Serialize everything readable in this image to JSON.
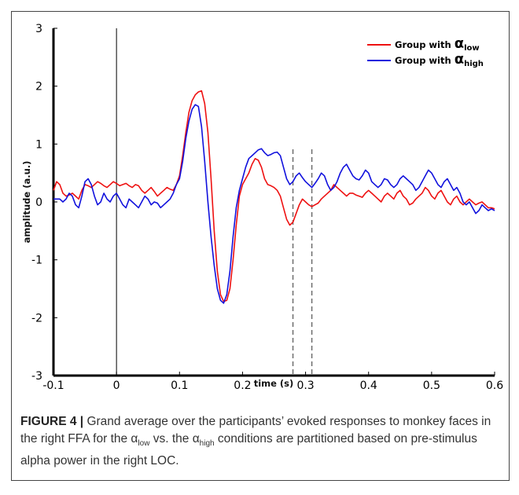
{
  "chart_data": {
    "type": "line",
    "xlabel": "time (s)",
    "ylabel": "amplitude (a.u.)",
    "xlim": [
      -0.1,
      0.6
    ],
    "ylim": [
      -3,
      3
    ],
    "xticks": [
      "-0.1",
      "0",
      "0.1",
      "0.2",
      "0.3",
      "0.4",
      "0.5",
      "0.6"
    ],
    "yticks": [
      "-3",
      "-2",
      "-1",
      "0",
      "1",
      "2",
      "3"
    ],
    "vertical_lines": [
      {
        "x": 0,
        "style": "solid"
      },
      {
        "x": 0.28,
        "style": "dashed"
      },
      {
        "x": 0.31,
        "style": "dashed"
      }
    ],
    "legend_position": "top-right",
    "legend_prefix": "Group with",
    "legend_symbol": "α",
    "series": [
      {
        "name": "Group with αlow",
        "subscript": "low",
        "color": "#ee1111",
        "x": [
          -0.1,
          -0.095,
          -0.09,
          -0.085,
          -0.08,
          -0.075,
          -0.07,
          -0.065,
          -0.06,
          -0.055,
          -0.05,
          -0.045,
          -0.04,
          -0.035,
          -0.03,
          -0.025,
          -0.02,
          -0.015,
          -0.01,
          -0.005,
          0,
          0.005,
          0.01,
          0.015,
          0.02,
          0.025,
          0.03,
          0.035,
          0.04,
          0.045,
          0.05,
          0.055,
          0.06,
          0.065,
          0.07,
          0.075,
          0.08,
          0.085,
          0.09,
          0.095,
          0.1,
          0.105,
          0.11,
          0.115,
          0.12,
          0.125,
          0.13,
          0.135,
          0.14,
          0.145,
          0.15,
          0.155,
          0.16,
          0.165,
          0.17,
          0.175,
          0.18,
          0.185,
          0.19,
          0.195,
          0.2,
          0.205,
          0.21,
          0.215,
          0.22,
          0.225,
          0.23,
          0.235,
          0.24,
          0.245,
          0.25,
          0.255,
          0.26,
          0.265,
          0.27,
          0.275,
          0.28,
          0.285,
          0.29,
          0.295,
          0.3,
          0.305,
          0.31,
          0.315,
          0.32,
          0.325,
          0.33,
          0.335,
          0.34,
          0.345,
          0.35,
          0.355,
          0.36,
          0.365,
          0.37,
          0.375,
          0.38,
          0.385,
          0.39,
          0.395,
          0.4,
          0.405,
          0.41,
          0.415,
          0.42,
          0.425,
          0.43,
          0.435,
          0.44,
          0.445,
          0.45,
          0.455,
          0.46,
          0.465,
          0.47,
          0.475,
          0.48,
          0.485,
          0.49,
          0.495,
          0.5,
          0.505,
          0.51,
          0.515,
          0.52,
          0.525,
          0.53,
          0.535,
          0.54,
          0.545,
          0.55,
          0.555,
          0.56,
          0.565,
          0.57,
          0.575,
          0.58,
          0.585,
          0.59,
          0.595,
          0.6
        ],
        "y": [
          0.2,
          0.35,
          0.3,
          0.15,
          0.1,
          0.12,
          0.15,
          0.1,
          0.05,
          0.2,
          0.3,
          0.28,
          0.25,
          0.3,
          0.35,
          0.32,
          0.28,
          0.25,
          0.3,
          0.35,
          0.32,
          0.28,
          0.3,
          0.32,
          0.28,
          0.25,
          0.3,
          0.28,
          0.2,
          0.15,
          0.2,
          0.25,
          0.18,
          0.1,
          0.15,
          0.2,
          0.25,
          0.22,
          0.2,
          0.3,
          0.45,
          0.8,
          1.2,
          1.55,
          1.75,
          1.85,
          1.9,
          1.92,
          1.7,
          1.2,
          0.4,
          -0.5,
          -1.2,
          -1.6,
          -1.72,
          -1.7,
          -1.5,
          -1.0,
          -0.4,
          0.1,
          0.3,
          0.4,
          0.5,
          0.65,
          0.75,
          0.72,
          0.6,
          0.4,
          0.3,
          0.28,
          0.25,
          0.2,
          0.1,
          -0.1,
          -0.3,
          -0.4,
          -0.35,
          -0.2,
          -0.05,
          0.05,
          0.0,
          -0.05,
          -0.08,
          -0.05,
          -0.02,
          0.05,
          0.1,
          0.15,
          0.2,
          0.3,
          0.25,
          0.2,
          0.15,
          0.1,
          0.15,
          0.15,
          0.12,
          0.1,
          0.08,
          0.15,
          0.2,
          0.15,
          0.1,
          0.05,
          0.0,
          0.1,
          0.15,
          0.1,
          0.05,
          0.15,
          0.2,
          0.1,
          0.05,
          -0.05,
          -0.02,
          0.05,
          0.1,
          0.15,
          0.25,
          0.2,
          0.1,
          0.05,
          0.15,
          0.2,
          0.1,
          0.0,
          -0.05,
          0.05,
          0.1,
          0.0,
          -0.05,
          0.0,
          0.05,
          0.0,
          -0.05,
          -0.02,
          0.0,
          -0.05,
          -0.1,
          -0.1,
          -0.12
        ]
      },
      {
        "name": "Group with αhigh",
        "subscript": "high",
        "color": "#1111dd",
        "x": [
          -0.1,
          -0.095,
          -0.09,
          -0.085,
          -0.08,
          -0.075,
          -0.07,
          -0.065,
          -0.06,
          -0.055,
          -0.05,
          -0.045,
          -0.04,
          -0.035,
          -0.03,
          -0.025,
          -0.02,
          -0.015,
          -0.01,
          -0.005,
          0,
          0.005,
          0.01,
          0.015,
          0.02,
          0.025,
          0.03,
          0.035,
          0.04,
          0.045,
          0.05,
          0.055,
          0.06,
          0.065,
          0.07,
          0.075,
          0.08,
          0.085,
          0.09,
          0.095,
          0.1,
          0.105,
          0.11,
          0.115,
          0.12,
          0.125,
          0.13,
          0.135,
          0.14,
          0.145,
          0.15,
          0.155,
          0.16,
          0.165,
          0.17,
          0.175,
          0.18,
          0.185,
          0.19,
          0.195,
          0.2,
          0.205,
          0.21,
          0.215,
          0.22,
          0.225,
          0.23,
          0.235,
          0.24,
          0.245,
          0.25,
          0.255,
          0.26,
          0.265,
          0.27,
          0.275,
          0.28,
          0.285,
          0.29,
          0.295,
          0.3,
          0.305,
          0.31,
          0.315,
          0.32,
          0.325,
          0.33,
          0.335,
          0.34,
          0.345,
          0.35,
          0.355,
          0.36,
          0.365,
          0.37,
          0.375,
          0.38,
          0.385,
          0.39,
          0.395,
          0.4,
          0.405,
          0.41,
          0.415,
          0.42,
          0.425,
          0.43,
          0.435,
          0.44,
          0.445,
          0.45,
          0.455,
          0.46,
          0.465,
          0.47,
          0.475,
          0.48,
          0.485,
          0.49,
          0.495,
          0.5,
          0.505,
          0.51,
          0.515,
          0.52,
          0.525,
          0.53,
          0.535,
          0.54,
          0.545,
          0.55,
          0.555,
          0.56,
          0.565,
          0.57,
          0.575,
          0.58,
          0.585,
          0.59,
          0.595,
          0.6
        ],
        "y": [
          0.05,
          0.05,
          0.05,
          0.0,
          0.05,
          0.15,
          0.1,
          -0.05,
          -0.1,
          0.1,
          0.35,
          0.4,
          0.3,
          0.1,
          -0.05,
          0.0,
          0.15,
          0.05,
          0.0,
          0.1,
          0.15,
          0.05,
          -0.05,
          -0.1,
          0.05,
          0.0,
          -0.05,
          -0.1,
          0.0,
          0.1,
          0.05,
          -0.05,
          0.0,
          -0.02,
          -0.1,
          -0.05,
          0.0,
          0.05,
          0.15,
          0.3,
          0.4,
          0.7,
          1.1,
          1.4,
          1.6,
          1.68,
          1.65,
          1.3,
          0.7,
          0.0,
          -0.6,
          -1.1,
          -1.5,
          -1.7,
          -1.75,
          -1.6,
          -1.2,
          -0.6,
          -0.1,
          0.2,
          0.4,
          0.6,
          0.75,
          0.8,
          0.85,
          0.9,
          0.92,
          0.85,
          0.8,
          0.82,
          0.85,
          0.86,
          0.8,
          0.6,
          0.4,
          0.3,
          0.35,
          0.45,
          0.5,
          0.42,
          0.35,
          0.3,
          0.25,
          0.32,
          0.4,
          0.5,
          0.45,
          0.3,
          0.2,
          0.25,
          0.35,
          0.5,
          0.6,
          0.65,
          0.55,
          0.45,
          0.4,
          0.38,
          0.45,
          0.55,
          0.5,
          0.35,
          0.3,
          0.25,
          0.3,
          0.4,
          0.38,
          0.3,
          0.25,
          0.3,
          0.4,
          0.45,
          0.4,
          0.35,
          0.3,
          0.2,
          0.25,
          0.35,
          0.45,
          0.55,
          0.5,
          0.4,
          0.3,
          0.25,
          0.35,
          0.4,
          0.3,
          0.2,
          0.25,
          0.15,
          0.0,
          -0.05,
          0.0,
          -0.1,
          -0.2,
          -0.15,
          -0.05,
          -0.1,
          -0.15,
          -0.12,
          -0.15
        ]
      }
    ]
  },
  "caption": {
    "label": "FIGURE 4",
    "separator": "|",
    "text_1": "Grand average over the participants’ evoked responses to monkey faces in the right FFA for the α",
    "sub_1": "low",
    "text_2": " vs. the α",
    "sub_2": "high",
    "text_3": " conditions are partitioned based on pre-stimulus alpha power in the right LOC."
  }
}
